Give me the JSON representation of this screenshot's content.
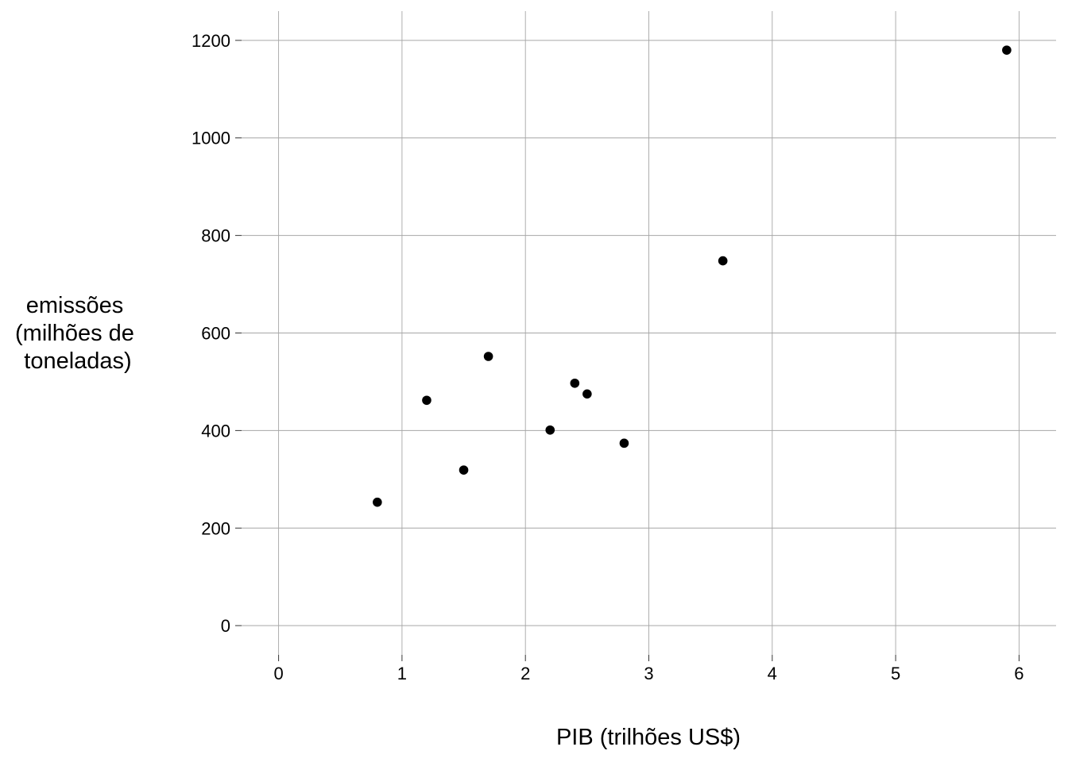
{
  "chart_data": {
    "type": "scatter",
    "xlabel": "PIB (trilhões US$)",
    "ylabel_lines": [
      "emissões",
      "(milhões de",
      "toneladas)"
    ],
    "xlim": [
      -0.3,
      6.3
    ],
    "ylim": [
      -60,
      1260
    ],
    "x_ticks": [
      0,
      1,
      2,
      3,
      4,
      5,
      6
    ],
    "y_ticks": [
      0,
      200,
      400,
      600,
      800,
      1000,
      1200
    ],
    "grid": true,
    "point_color": "#000000",
    "grid_color": "#a6a6a6",
    "points": [
      {
        "x": 0.8,
        "y": 253
      },
      {
        "x": 1.2,
        "y": 462
      },
      {
        "x": 1.5,
        "y": 319
      },
      {
        "x": 1.7,
        "y": 552
      },
      {
        "x": 2.2,
        "y": 401
      },
      {
        "x": 2.4,
        "y": 497
      },
      {
        "x": 2.5,
        "y": 475
      },
      {
        "x": 2.8,
        "y": 374
      },
      {
        "x": 3.6,
        "y": 748
      },
      {
        "x": 5.9,
        "y": 1180
      }
    ]
  }
}
